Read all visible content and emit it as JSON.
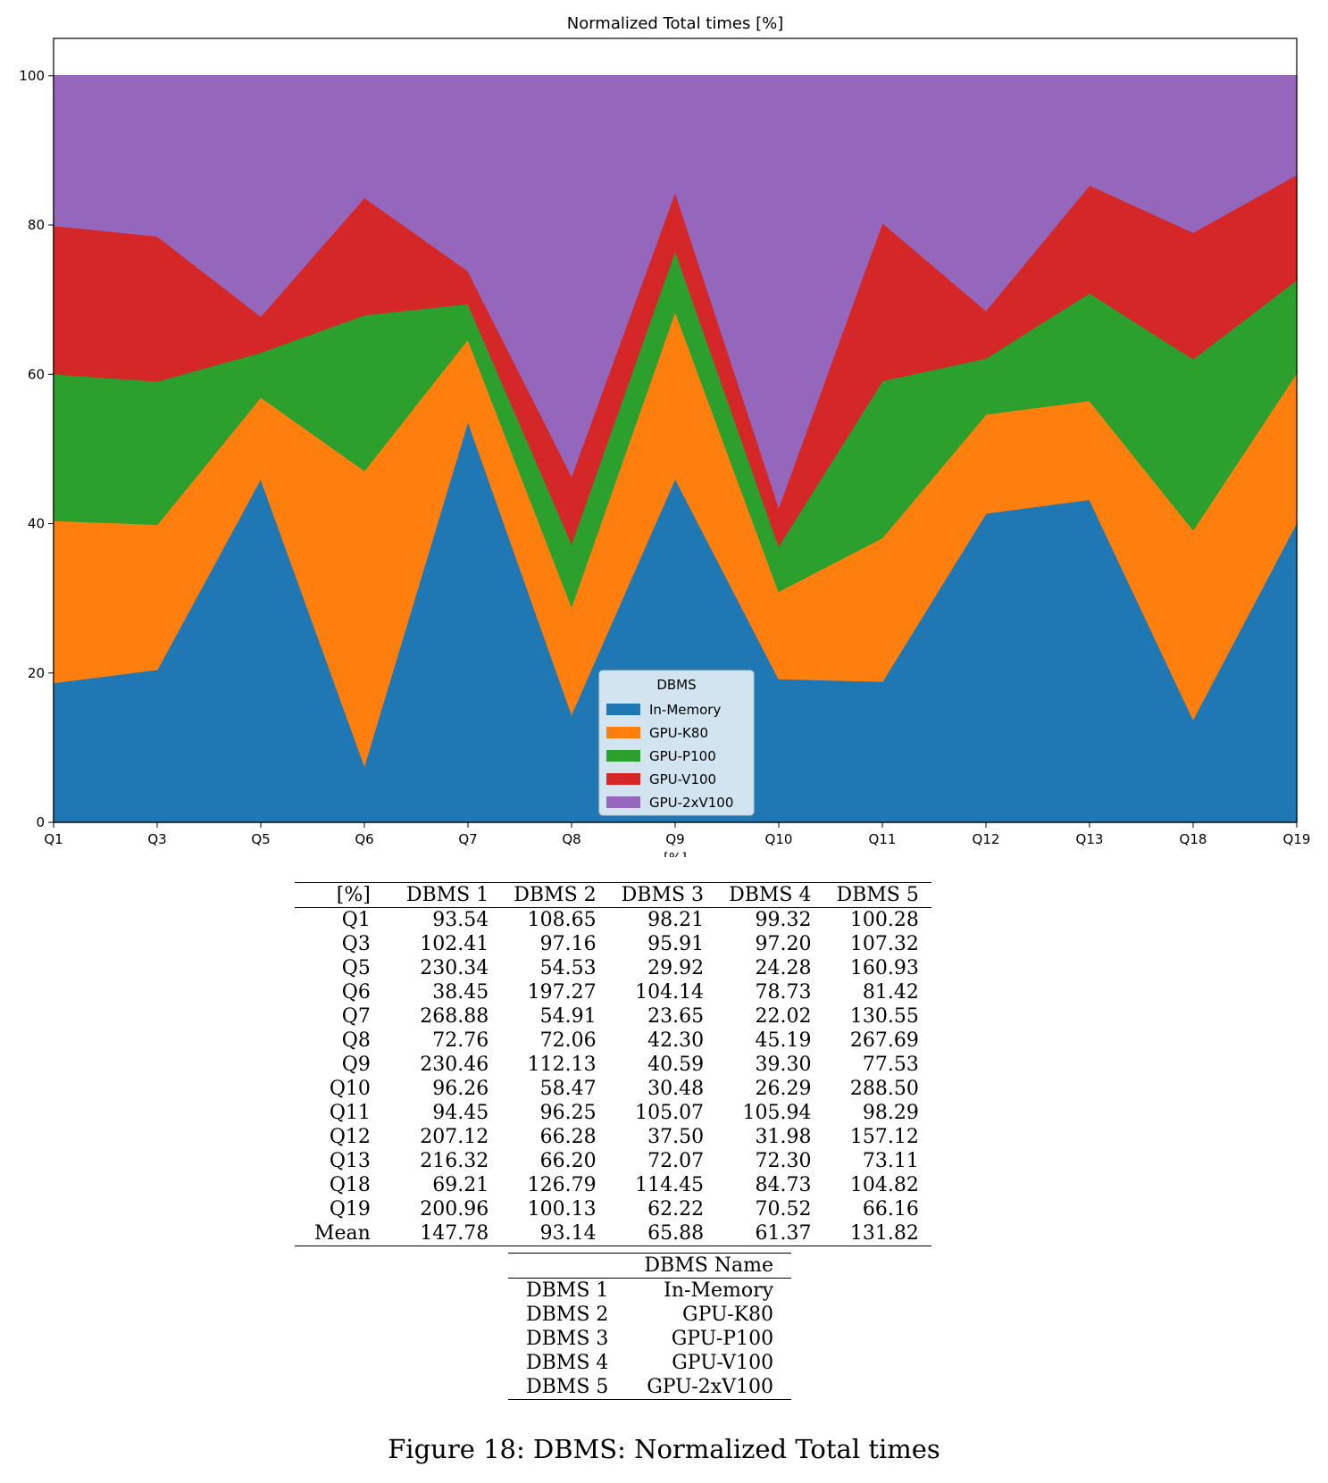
{
  "chart_data": {
    "type": "area",
    "stacked": true,
    "normalized": true,
    "title": "Normalized Total times [%]",
    "xlabel": "[%]",
    "ylabel": "",
    "ylim": [
      0,
      105
    ],
    "yticks": [
      0,
      20,
      40,
      60,
      80,
      100
    ],
    "categories": [
      "Q1",
      "Q3",
      "Q5",
      "Q6",
      "Q7",
      "Q8",
      "Q9",
      "Q10",
      "Q11",
      "Q12",
      "Q13",
      "Q18",
      "Q19"
    ],
    "legend_title": "DBMS",
    "legend_position": "bottom-center",
    "series": [
      {
        "name": "In-Memory",
        "color": "#1f77b4",
        "values": [
          93.54,
          102.41,
          230.34,
          38.45,
          268.88,
          72.76,
          230.46,
          96.26,
          94.45,
          207.12,
          216.32,
          69.21,
          200.96
        ]
      },
      {
        "name": "GPU-K80",
        "color": "#ff7f0e",
        "values": [
          108.65,
          97.16,
          54.53,
          197.27,
          54.91,
          72.06,
          112.13,
          58.47,
          96.25,
          66.28,
          66.2,
          126.79,
          100.13
        ]
      },
      {
        "name": "GPU-P100",
        "color": "#2ca02c",
        "values": [
          98.21,
          95.91,
          29.92,
          104.14,
          23.65,
          42.3,
          40.59,
          30.48,
          105.07,
          37.5,
          72.07,
          114.45,
          62.22
        ]
      },
      {
        "name": "GPU-V100",
        "color": "#d62728",
        "values": [
          99.32,
          97.2,
          24.28,
          78.73,
          22.02,
          45.19,
          39.3,
          26.29,
          105.94,
          31.98,
          72.3,
          84.73,
          70.52
        ]
      },
      {
        "name": "GPU-2xV100",
        "color": "#9467bd",
        "values": [
          100.28,
          107.32,
          160.93,
          81.42,
          130.55,
          267.69,
          77.53,
          288.5,
          98.29,
          157.12,
          73.11,
          104.82,
          66.16
        ]
      }
    ]
  },
  "results_table": {
    "headers": [
      "[%]",
      "DBMS 1",
      "DBMS 2",
      "DBMS 3",
      "DBMS 4",
      "DBMS 5"
    ],
    "rows": [
      [
        "Q1",
        "93.54",
        "108.65",
        "98.21",
        "99.32",
        "100.28"
      ],
      [
        "Q3",
        "102.41",
        "97.16",
        "95.91",
        "97.20",
        "107.32"
      ],
      [
        "Q5",
        "230.34",
        "54.53",
        "29.92",
        "24.28",
        "160.93"
      ],
      [
        "Q6",
        "38.45",
        "197.27",
        "104.14",
        "78.73",
        "81.42"
      ],
      [
        "Q7",
        "268.88",
        "54.91",
        "23.65",
        "22.02",
        "130.55"
      ],
      [
        "Q8",
        "72.76",
        "72.06",
        "42.30",
        "45.19",
        "267.69"
      ],
      [
        "Q9",
        "230.46",
        "112.13",
        "40.59",
        "39.30",
        "77.53"
      ],
      [
        "Q10",
        "96.26",
        "58.47",
        "30.48",
        "26.29",
        "288.50"
      ],
      [
        "Q11",
        "94.45",
        "96.25",
        "105.07",
        "105.94",
        "98.29"
      ],
      [
        "Q12",
        "207.12",
        "66.28",
        "37.50",
        "31.98",
        "157.12"
      ],
      [
        "Q13",
        "216.32",
        "66.20",
        "72.07",
        "72.30",
        "73.11"
      ],
      [
        "Q18",
        "69.21",
        "126.79",
        "114.45",
        "84.73",
        "104.82"
      ],
      [
        "Q19",
        "200.96",
        "100.13",
        "62.22",
        "70.52",
        "66.16"
      ],
      [
        "Mean",
        "147.78",
        "93.14",
        "65.88",
        "61.37",
        "131.82"
      ]
    ]
  },
  "names_table": {
    "header": "DBMS Name",
    "rows": [
      [
        "DBMS 1",
        "In-Memory"
      ],
      [
        "DBMS 2",
        "GPU-K80"
      ],
      [
        "DBMS 3",
        "GPU-P100"
      ],
      [
        "DBMS 4",
        "GPU-V100"
      ],
      [
        "DBMS 5",
        "GPU-2xV100"
      ]
    ]
  },
  "caption": "Figure 18: DBMS: Normalized Total times"
}
